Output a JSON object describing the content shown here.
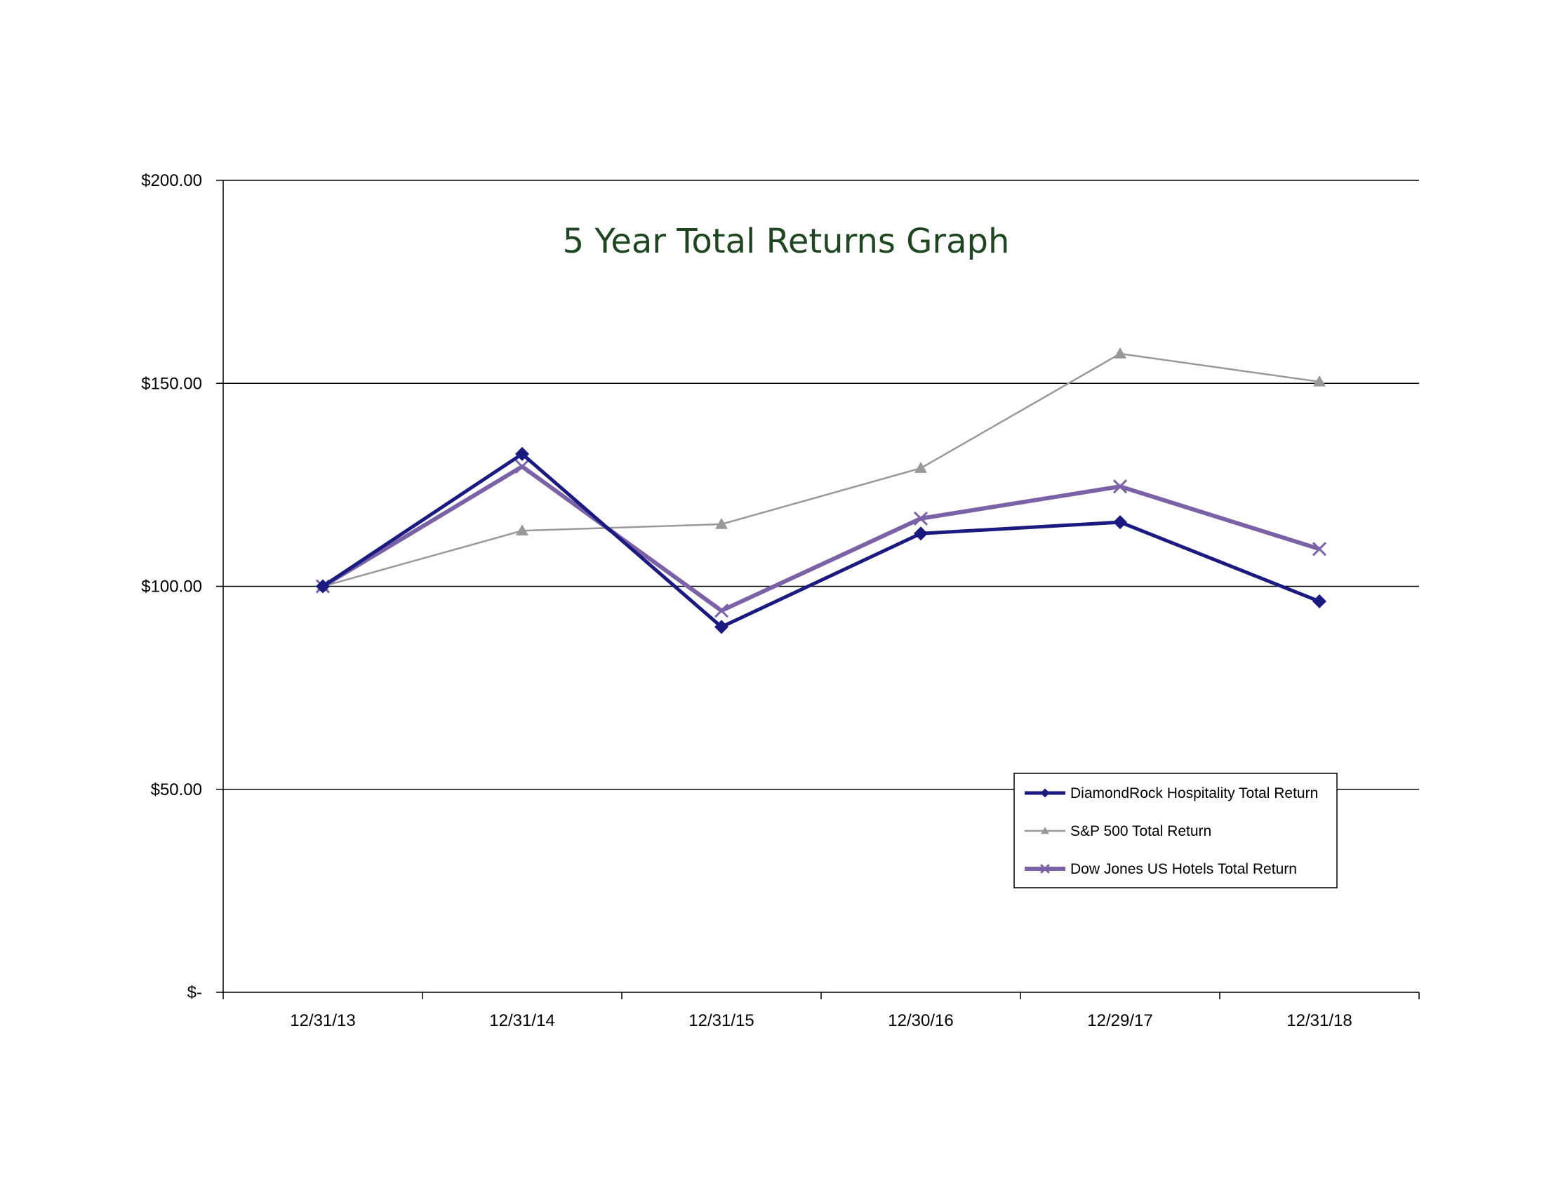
{
  "chart_data": {
    "type": "line",
    "title": "5 Year Total Returns Graph",
    "xlabel": "",
    "ylabel": "",
    "categories": [
      "12/31/13",
      "12/31/14",
      "12/31/15",
      "12/30/16",
      "12/29/17",
      "12/31/18"
    ],
    "ylim": [
      0,
      200
    ],
    "yticks": [
      0,
      50,
      100,
      150,
      200
    ],
    "ytick_labels": [
      "$-",
      "$50.00",
      "$100.00",
      "$150.00",
      "$200.00"
    ],
    "grid": true,
    "legend_position": "bottom-right",
    "series": [
      {
        "name": "DiamondRock Hospitality Total Return",
        "values": [
          100,
          132.6,
          90.0,
          113.0,
          115.8,
          96.3
        ],
        "color": "#1a1a80",
        "marker": "diamond"
      },
      {
        "name": "S&P 500 Total Return",
        "values": [
          100,
          113.7,
          115.3,
          129.1,
          157.3,
          150.4
        ],
        "color": "#999999",
        "marker": "triangle"
      },
      {
        "name": "Dow Jones US Hotels Total Return",
        "values": [
          100,
          129.5,
          94.0,
          116.7,
          124.6,
          109.2
        ],
        "color": "#7b62a6",
        "marker": "x"
      }
    ]
  }
}
